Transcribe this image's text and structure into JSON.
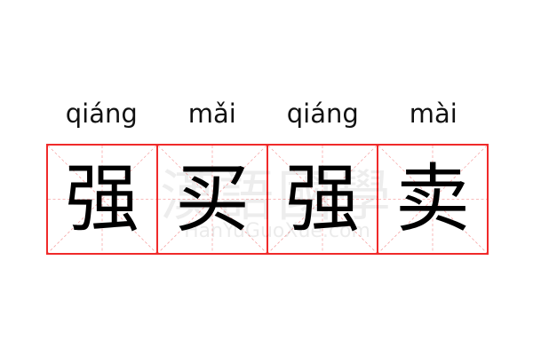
{
  "pinyin": [
    "qiáng",
    "mǎi",
    "qiáng",
    "mài"
  ],
  "characters": [
    "强",
    "买",
    "强",
    "卖"
  ],
  "watermark": {
    "cn": "漢語國學",
    "en": "HanYuGuoXue.com"
  },
  "colors": {
    "grid_border": "#f02a2a",
    "guide_lines": "#f7a6a6",
    "text": "#000000"
  }
}
